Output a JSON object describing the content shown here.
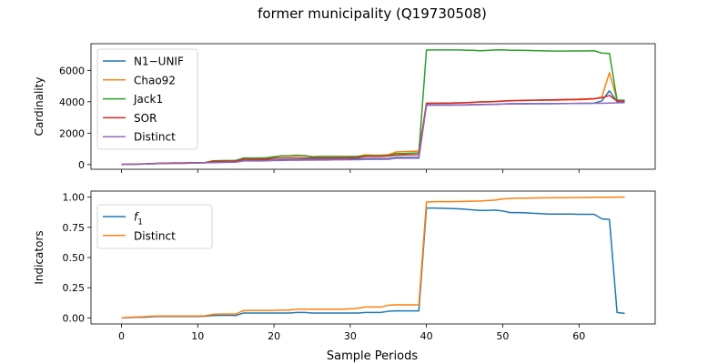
{
  "figure": {
    "title": "former municipality (Q19730508)",
    "xlabel": "Sample Periods"
  },
  "colors": {
    "N1-UNIF": "#1f77b4",
    "Chao92": "#ff7f0e",
    "Jack1": "#2ca02c",
    "SOR": "#d62728",
    "Distinct": "#9467bd"
  },
  "chart_data": [
    {
      "type": "line",
      "ylabel": "Cardinality",
      "xlim": [
        -4,
        70
      ],
      "ylim": [
        -300,
        7700
      ],
      "xticks": [
        0,
        10,
        20,
        30,
        40,
        50,
        60
      ],
      "xtick_labels_visible": false,
      "yticks": [
        0,
        2000,
        4000,
        6000
      ],
      "ytick_labels": [
        "0",
        "2000",
        "4000",
        "6000"
      ],
      "grid": false,
      "legend_position": "upper-left",
      "x": [
        0,
        1,
        2,
        3,
        4,
        5,
        6,
        7,
        8,
        9,
        10,
        11,
        12,
        13,
        14,
        15,
        16,
        17,
        18,
        19,
        20,
        21,
        22,
        23,
        24,
        25,
        26,
        27,
        28,
        29,
        30,
        31,
        32,
        33,
        34,
        35,
        36,
        37,
        38,
        39,
        40,
        41,
        42,
        43,
        44,
        45,
        46,
        47,
        48,
        49,
        50,
        51,
        52,
        53,
        54,
        55,
        56,
        57,
        58,
        59,
        60,
        61,
        62,
        63,
        64,
        65,
        66
      ],
      "series": [
        {
          "name": "N1−UNIF",
          "color": "#1f77b4",
          "values": [
            0,
            10,
            20,
            30,
            50,
            60,
            70,
            80,
            80,
            90,
            100,
            110,
            150,
            160,
            170,
            180,
            240,
            250,
            260,
            270,
            290,
            300,
            310,
            310,
            320,
            320,
            330,
            330,
            340,
            340,
            350,
            350,
            380,
            380,
            380,
            390,
            450,
            450,
            450,
            450,
            3800,
            3800,
            3800,
            3800,
            3800,
            3800,
            3820,
            3820,
            3840,
            3840,
            3860,
            3880,
            3880,
            3880,
            3880,
            3880,
            3880,
            3880,
            3890,
            3890,
            3900,
            3900,
            3910,
            4050,
            4700,
            4000,
            4000
          ]
        },
        {
          "name": "Chao92",
          "color": "#ff7f0e",
          "values": [
            10,
            20,
            30,
            40,
            60,
            80,
            90,
            100,
            100,
            110,
            120,
            130,
            200,
            210,
            220,
            220,
            380,
            380,
            380,
            390,
            450,
            560,
            560,
            600,
            580,
            500,
            510,
            510,
            510,
            510,
            510,
            520,
            620,
            600,
            600,
            630,
            800,
            820,
            840,
            860,
            3900,
            3910,
            3910,
            3910,
            3920,
            3930,
            3960,
            3990,
            4000,
            4020,
            4050,
            4080,
            4080,
            4080,
            4090,
            4090,
            4100,
            4100,
            4110,
            4120,
            4130,
            4150,
            4180,
            4300,
            5850,
            4100,
            4050
          ]
        },
        {
          "name": "Jack1",
          "color": "#2ca02c",
          "values": [
            10,
            20,
            30,
            40,
            60,
            80,
            90,
            100,
            100,
            110,
            120,
            130,
            240,
            250,
            260,
            260,
            420,
            420,
            420,
            430,
            500,
            550,
            550,
            560,
            560,
            500,
            510,
            510,
            510,
            510,
            510,
            520,
            560,
            560,
            560,
            580,
            700,
            700,
            720,
            740,
            7300,
            7300,
            7300,
            7300,
            7300,
            7290,
            7280,
            7250,
            7270,
            7300,
            7310,
            7280,
            7280,
            7270,
            7260,
            7250,
            7240,
            7230,
            7230,
            7240,
            7240,
            7240,
            7250,
            7100,
            7080,
            4100,
            4100
          ]
        },
        {
          "name": "SOR",
          "color": "#d62728",
          "values": [
            10,
            20,
            30,
            40,
            60,
            80,
            90,
            100,
            100,
            110,
            120,
            130,
            200,
            200,
            210,
            210,
            330,
            330,
            330,
            340,
            400,
            420,
            420,
            420,
            420,
            420,
            420,
            420,
            420,
            420,
            430,
            440,
            520,
            520,
            520,
            550,
            600,
            610,
            620,
            630,
            3900,
            3910,
            3910,
            3920,
            3930,
            3940,
            3960,
            3990,
            4000,
            4010,
            4040,
            4060,
            4080,
            4090,
            4100,
            4110,
            4120,
            4130,
            4140,
            4150,
            4160,
            4180,
            4200,
            4250,
            4400,
            4050,
            4050
          ]
        },
        {
          "name": "Distinct",
          "color": "#9467bd",
          "values": [
            0,
            10,
            20,
            30,
            50,
            60,
            70,
            80,
            80,
            90,
            100,
            110,
            120,
            130,
            140,
            150,
            230,
            230,
            230,
            240,
            260,
            260,
            270,
            270,
            280,
            280,
            290,
            290,
            300,
            300,
            310,
            310,
            330,
            330,
            330,
            340,
            400,
            400,
            400,
            400,
            3780,
            3780,
            3780,
            3780,
            3790,
            3790,
            3800,
            3810,
            3820,
            3830,
            3850,
            3860,
            3860,
            3860,
            3870,
            3870,
            3870,
            3880,
            3880,
            3890,
            3890,
            3890,
            3900,
            3900,
            3920,
            3930,
            3940
          ]
        }
      ]
    },
    {
      "type": "line",
      "ylabel": "Indicators",
      "xlim": [
        -4,
        70
      ],
      "ylim": [
        -0.05,
        1.05
      ],
      "xticks": [
        0,
        10,
        20,
        30,
        40,
        50,
        60
      ],
      "xtick_labels": [
        "0",
        "10",
        "20",
        "30",
        "40",
        "50",
        "60"
      ],
      "yticks": [
        0.0,
        0.25,
        0.5,
        0.75,
        1.0
      ],
      "ytick_labels": [
        "0.00",
        "0.25",
        "0.50",
        "0.75",
        "1.00"
      ],
      "grid": false,
      "legend_position": "upper-left",
      "x": [
        0,
        1,
        2,
        3,
        4,
        5,
        6,
        7,
        8,
        9,
        10,
        11,
        12,
        13,
        14,
        15,
        16,
        17,
        18,
        19,
        20,
        21,
        22,
        23,
        24,
        25,
        26,
        27,
        28,
        29,
        30,
        31,
        32,
        33,
        34,
        35,
        36,
        37,
        38,
        39,
        40,
        41,
        42,
        43,
        44,
        45,
        46,
        47,
        48,
        49,
        50,
        51,
        52,
        53,
        54,
        55,
        56,
        57,
        58,
        59,
        60,
        61,
        62,
        63,
        64,
        65,
        66
      ],
      "series": [
        {
          "name": "f1",
          "name_base": "f",
          "name_sub": "1",
          "color": "#1f77b4",
          "values": [
            0.0,
            0.003,
            0.006,
            0.006,
            0.01,
            0.012,
            0.012,
            0.012,
            0.012,
            0.012,
            0.012,
            0.014,
            0.02,
            0.022,
            0.022,
            0.02,
            0.04,
            0.04,
            0.04,
            0.04,
            0.04,
            0.04,
            0.04,
            0.045,
            0.045,
            0.04,
            0.04,
            0.04,
            0.04,
            0.04,
            0.04,
            0.04,
            0.045,
            0.045,
            0.045,
            0.055,
            0.058,
            0.058,
            0.058,
            0.058,
            0.91,
            0.91,
            0.908,
            0.906,
            0.904,
            0.9,
            0.895,
            0.89,
            0.89,
            0.893,
            0.885,
            0.872,
            0.872,
            0.87,
            0.866,
            0.864,
            0.86,
            0.86,
            0.86,
            0.86,
            0.858,
            0.858,
            0.858,
            0.82,
            0.815,
            0.045,
            0.038
          ]
        },
        {
          "name": "Distinct",
          "color": "#ff7f0e",
          "values": [
            0.0,
            0.005,
            0.008,
            0.01,
            0.015,
            0.016,
            0.016,
            0.016,
            0.016,
            0.016,
            0.016,
            0.018,
            0.03,
            0.032,
            0.032,
            0.032,
            0.06,
            0.062,
            0.062,
            0.062,
            0.062,
            0.065,
            0.065,
            0.072,
            0.072,
            0.072,
            0.072,
            0.072,
            0.072,
            0.072,
            0.075,
            0.08,
            0.09,
            0.09,
            0.09,
            0.105,
            0.108,
            0.108,
            0.108,
            0.108,
            0.96,
            0.962,
            0.962,
            0.962,
            0.963,
            0.964,
            0.966,
            0.968,
            0.972,
            0.976,
            0.985,
            0.99,
            0.992,
            0.992,
            0.993,
            0.994,
            0.994,
            0.995,
            0.995,
            0.996,
            0.996,
            0.997,
            0.998,
            0.999,
            0.999,
            1.0,
            1.0
          ]
        }
      ]
    }
  ]
}
